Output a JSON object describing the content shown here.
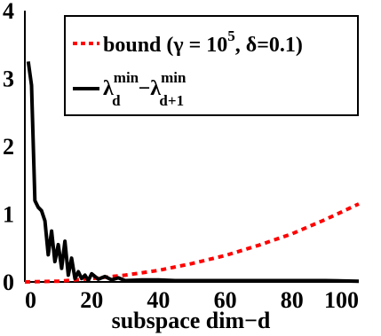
{
  "chart_data": {
    "type": "line",
    "xlabel": "subspace dim−d",
    "ylabel": "",
    "xlim": [
      0,
      100
    ],
    "ylim": [
      0,
      4
    ],
    "x_ticks": [
      "0",
      "20",
      "40",
      "60",
      "80",
      "100"
    ],
    "y_ticks": [
      "0",
      "1",
      "2",
      "3",
      "4"
    ],
    "grid": false,
    "legend_position": "top-right",
    "series": [
      {
        "name": "bound (γ = 10⁵, δ=0.1)",
        "style": "dashed",
        "color": "#ff0000",
        "x": [
          0,
          10,
          20,
          30,
          40,
          50,
          60,
          70,
          80,
          90,
          100
        ],
        "y": [
          0,
          0.01,
          0.05,
          0.1,
          0.17,
          0.27,
          0.39,
          0.54,
          0.71,
          0.92,
          1.15
        ]
      },
      {
        "name": "λ_d^min − λ_{d+1}^min",
        "style": "solid",
        "color": "#000000",
        "x": [
          1,
          2,
          3,
          4,
          5,
          6,
          7,
          8,
          9,
          10,
          11,
          12,
          13,
          14,
          15,
          16,
          17,
          18,
          19,
          20,
          22,
          24,
          26,
          28,
          30,
          35,
          40,
          45,
          50,
          60,
          70,
          80,
          90,
          100
        ],
        "y": [
          3.25,
          2.9,
          1.2,
          1.1,
          1.05,
          0.9,
          0.4,
          0.75,
          0.3,
          0.55,
          0.2,
          0.6,
          0.1,
          0.35,
          0.05,
          0.15,
          0.05,
          0.1,
          0.02,
          0.12,
          0.04,
          0.08,
          0.03,
          0.06,
          0.02,
          0.03,
          0.03,
          0.02,
          0.02,
          0.02,
          0.02,
          0.02,
          0.02,
          0.01
        ]
      }
    ]
  },
  "legend": {
    "bound_text": "bound (γ = 10",
    "bound_sup": "5",
    "bound_tail": ", δ=0.1)",
    "lambda_a": "λ",
    "lambda_a_sup": "min",
    "lambda_a_sub": "d",
    "minus": "−λ",
    "lambda_b_sup": "min",
    "lambda_b_sub": "d+1"
  }
}
